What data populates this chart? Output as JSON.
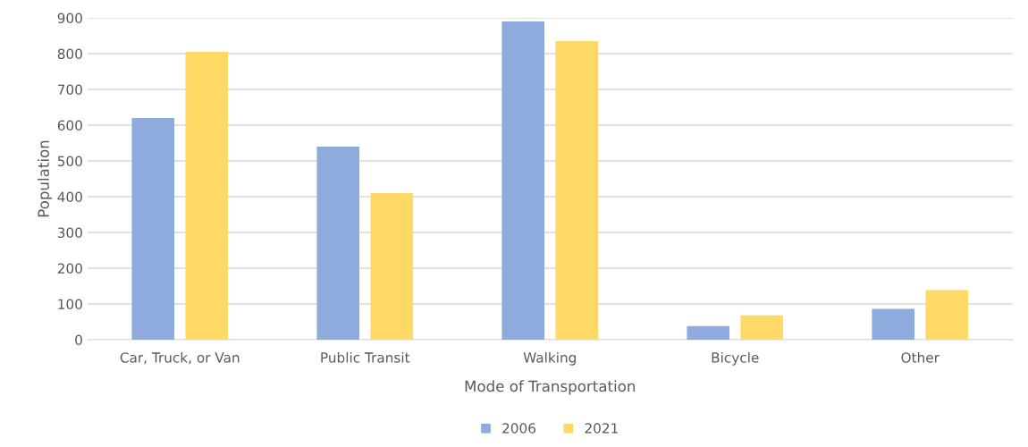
{
  "chart_data": {
    "type": "bar",
    "xlabel": "Mode of Transportation",
    "ylabel": "Population",
    "categories": [
      "Car, Truck, or Van",
      "Public Transit",
      "Walking",
      "Bicycle",
      "Other"
    ],
    "series": [
      {
        "name": "2006",
        "color": "#8faadc",
        "values": [
          620,
          540,
          890,
          38,
          86
        ]
      },
      {
        "name": "2021",
        "color": "#ffd966",
        "values": [
          805,
          410,
          835,
          68,
          139
        ]
      }
    ],
    "ylim": [
      0,
      900
    ],
    "yticks": [
      0,
      100,
      200,
      300,
      400,
      500,
      600,
      700,
      800,
      900
    ],
    "grid": "y",
    "legend": "bottom"
  }
}
